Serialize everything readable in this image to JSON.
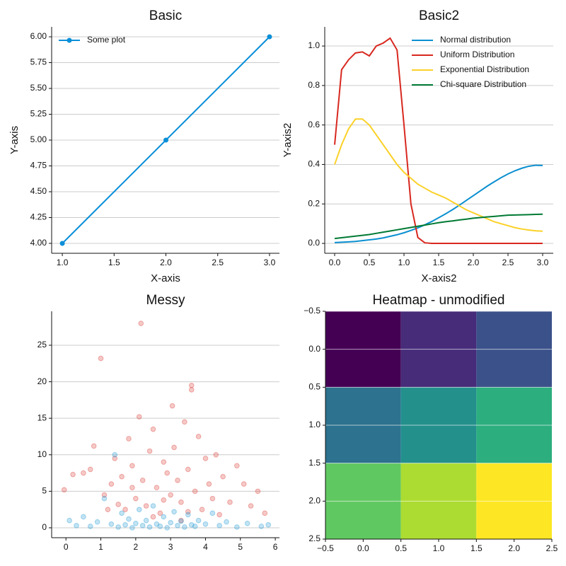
{
  "chart_data": [
    {
      "type": "line",
      "title": "Basic",
      "xlabel": "X-axis",
      "ylabel": "Y-axis",
      "x": [
        1,
        2,
        3
      ],
      "series": [
        {
          "name": "Some plot",
          "color": "#0a8fd8",
          "values": [
            4,
            5,
            6
          ],
          "marker": true
        }
      ],
      "xlim": [
        0.897,
        3.096
      ],
      "ylim": [
        3.904,
        6.096
      ],
      "xticks": [
        {
          "value": 1,
          "label": "1.0"
        },
        1.5,
        {
          "value": 2,
          "label": "2.0"
        },
        2.5,
        {
          "value": 3,
          "label": "3.0"
        }
      ],
      "yticks": [
        {
          "value": 4,
          "label": "4.00"
        },
        4.25,
        {
          "value": 4.5,
          "label": "4.50"
        },
        4.75,
        {
          "value": 5,
          "label": "5.00"
        },
        5.25,
        {
          "value": 5.5,
          "label": "5.50"
        },
        5.75,
        {
          "value": 6,
          "label": "6.00"
        }
      ],
      "grid": true,
      "legend": "upper-left"
    },
    {
      "type": "line",
      "title": "Basic2",
      "xlabel": "X-axis2",
      "ylabel": "Y-axis2",
      "x": [
        0,
        0.1,
        0.2,
        0.3,
        0.4,
        0.5,
        0.6,
        0.7,
        0.8,
        0.9,
        1.0,
        1.1,
        1.2,
        1.3,
        1.4,
        1.5,
        1.6,
        1.7,
        1.8,
        1.9,
        2.0,
        2.1,
        2.2,
        2.3,
        2.4,
        2.5,
        2.6,
        2.7,
        2.8,
        2.9,
        3.0
      ],
      "series": [
        {
          "name": "Normal distribution",
          "color": "#0a8fd0",
          "values": [
            0.004,
            0.006,
            0.008,
            0.01,
            0.014,
            0.018,
            0.022,
            0.028,
            0.036,
            0.044,
            0.054,
            0.066,
            0.079,
            0.094,
            0.111,
            0.13,
            0.15,
            0.171,
            0.194,
            0.218,
            0.242,
            0.266,
            0.29,
            0.312,
            0.333,
            0.352,
            0.368,
            0.381,
            0.391,
            0.396,
            0.395
          ]
        },
        {
          "name": "Uniform Distribution",
          "color": "#d8281f",
          "values": [
            0.5,
            0.88,
            0.93,
            0.965,
            0.97,
            0.95,
            1.0,
            1.015,
            1.04,
            0.98,
            0.6,
            0.2,
            0.03,
            0.003,
            0,
            0,
            0,
            0,
            0,
            0,
            0,
            0,
            0,
            0,
            0,
            0,
            0,
            0,
            0,
            0,
            0
          ]
        },
        {
          "name": "Exponential Distribution",
          "color": "#fbd128",
          "values": [
            0.4,
            0.5,
            0.58,
            0.63,
            0.63,
            0.6,
            0.55,
            0.5,
            0.45,
            0.4,
            0.36,
            0.33,
            0.3,
            0.28,
            0.26,
            0.245,
            0.23,
            0.21,
            0.19,
            0.17,
            0.155,
            0.14,
            0.125,
            0.11,
            0.1,
            0.09,
            0.08,
            0.073,
            0.068,
            0.064,
            0.062
          ]
        },
        {
          "name": "Chi-square Distribution",
          "color": "#007a33",
          "values": [
            0.025,
            0.029,
            0.033,
            0.037,
            0.041,
            0.045,
            0.051,
            0.057,
            0.063,
            0.069,
            0.075,
            0.081,
            0.087,
            0.093,
            0.099,
            0.105,
            0.11,
            0.114,
            0.119,
            0.123,
            0.128,
            0.131,
            0.134,
            0.137,
            0.14,
            0.143,
            0.144,
            0.145,
            0.146,
            0.147,
            0.148
          ]
        }
      ],
      "xlim": [
        -0.143,
        3.153
      ],
      "ylim": [
        -0.05,
        1.097
      ],
      "xticks": [
        {
          "value": 0,
          "label": "0.0"
        },
        0.5,
        {
          "value": 1,
          "label": "1.0"
        },
        1.5,
        {
          "value": 2,
          "label": "2.0"
        },
        2.5,
        {
          "value": 3,
          "label": "3.0"
        }
      ],
      "yticks": [
        {
          "value": 0,
          "label": "0.0"
        },
        0.2,
        0.4,
        0.6,
        0.8,
        {
          "value": 1,
          "label": "1.0"
        }
      ],
      "grid": true,
      "legend": "upper-right"
    },
    {
      "type": "scatter",
      "title": "Messy",
      "series": [
        {
          "color": "#d8281f",
          "opacity": 0.25,
          "x": [
            -0.05,
            0.2,
            0.5,
            0.7,
            0.8,
            1.0,
            1.1,
            1.3,
            1.4,
            1.5,
            1.6,
            1.7,
            1.8,
            1.9,
            2.0,
            2.1,
            2.15,
            2.2,
            2.3,
            2.4,
            2.5,
            2.6,
            2.7,
            2.8,
            2.9,
            3.0,
            3.05,
            3.1,
            3.2,
            3.3,
            3.4,
            3.5,
            3.6,
            3.6,
            3.7,
            3.8,
            3.9,
            4.0,
            4.1,
            4.2,
            4.3,
            4.5,
            4.7,
            4.9,
            5.1,
            5.3,
            5.5,
            5.7,
            1.2,
            2.5,
            3.3,
            2.8,
            1.9,
            4.4,
            3.5
          ],
          "values": [
            5.2,
            7.3,
            7.5,
            8.0,
            11.2,
            23.2,
            4.5,
            6.0,
            9.5,
            3.2,
            7.0,
            2.5,
            12.2,
            8.5,
            4.0,
            15.2,
            28.0,
            6.5,
            3.0,
            10.5,
            13.5,
            5.5,
            2.0,
            9.0,
            7.5,
            4.5,
            16.7,
            11.0,
            6.5,
            3.5,
            14.5,
            8.0,
            19.5,
            18.9,
            5.0,
            12.5,
            2.5,
            9.5,
            6.0,
            4.0,
            10.0,
            7.0,
            3.5,
            8.5,
            6.0,
            3.0,
            5.0,
            2.0,
            2.5,
            1.5,
            1.0,
            3.8,
            5.5,
            1.8,
            2.2
          ]
        },
        {
          "color": "#0a8fd0",
          "opacity": 0.25,
          "x": [
            0.1,
            0.3,
            0.5,
            0.7,
            0.9,
            1.1,
            1.3,
            1.4,
            1.5,
            1.6,
            1.7,
            1.8,
            1.9,
            2.0,
            2.1,
            2.2,
            2.3,
            2.4,
            2.5,
            2.6,
            2.7,
            2.8,
            2.9,
            3.0,
            3.1,
            3.2,
            3.3,
            3.4,
            3.5,
            3.6,
            3.7,
            3.8,
            4.0,
            4.2,
            4.4,
            4.6,
            4.9,
            5.2,
            5.6,
            5.8
          ],
          "values": [
            1.0,
            0.3,
            1.5,
            0.2,
            0.8,
            4.0,
            0.5,
            10.0,
            0.1,
            2.0,
            0.4,
            1.2,
            0.0,
            0.6,
            2.5,
            0.3,
            1.0,
            0.1,
            3.0,
            0.5,
            0.2,
            1.5,
            0.0,
            0.7,
            2.2,
            0.3,
            0.9,
            0.1,
            1.8,
            0.4,
            0.2,
            1.0,
            0.5,
            2.0,
            0.3,
            0.8,
            0.1,
            0.6,
            0.2,
            0.4
          ]
        }
      ],
      "xlim": [
        -0.41,
        6.12
      ],
      "ylim": [
        -1.36,
        29.65
      ],
      "xticks": [
        0,
        1,
        2,
        3,
        4,
        5,
        6
      ],
      "yticks": [
        0,
        5,
        10,
        15,
        20,
        25
      ],
      "grid": true
    },
    {
      "type": "heatmap",
      "title": "Heatmap - unmodified",
      "z": [
        [
          0,
          1,
          2
        ],
        [
          3,
          4,
          5
        ],
        [
          6,
          7,
          8
        ]
      ],
      "colormap": "viridis",
      "xlim": [
        -0.5,
        2.5
      ],
      "ylim": [
        2.5,
        -0.5
      ],
      "xticks": [
        {
          "value": -0.5,
          "label": "−0.5"
        },
        {
          "value": 0,
          "label": "0.0"
        },
        0.5,
        {
          "value": 1,
          "label": "1.0"
        },
        1.5,
        {
          "value": 2,
          "label": "2.0"
        },
        2.5
      ],
      "yticks": [
        {
          "value": -0.5,
          "label": "−0.5"
        },
        {
          "value": 0,
          "label": "0.0"
        },
        0.5,
        {
          "value": 1,
          "label": "1.0"
        },
        1.5,
        {
          "value": 2,
          "label": "2.0"
        },
        2.5
      ],
      "grid": true
    }
  ]
}
